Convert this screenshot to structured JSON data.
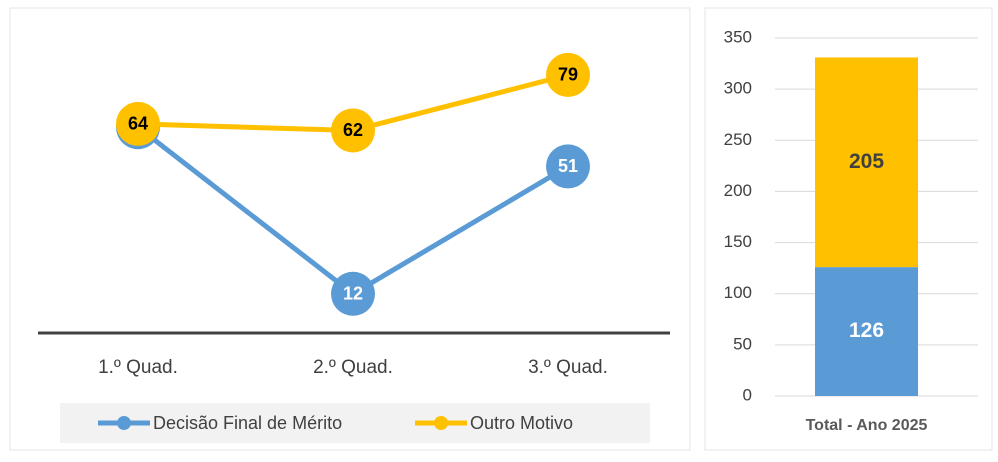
{
  "chart_data": [
    {
      "type": "line",
      "categories": [
        "1.º Quad.",
        "2.º Quad.",
        "3.º Quad."
      ],
      "series": [
        {
          "name": "Decisão Final de Mérito",
          "color": "#5b9bd5",
          "values": [
            63,
            12,
            51
          ]
        },
        {
          "name": "Outro Motivo",
          "color": "#ffc000",
          "values": [
            64,
            62,
            79
          ]
        }
      ],
      "ylim": [
        0,
        90
      ],
      "legend": "bottom"
    },
    {
      "type": "stacked_bar",
      "categories": [
        "Total - Ano 2025"
      ],
      "series": [
        {
          "name": "Decisão Final de Mérito",
          "color": "#5b9bd5",
          "values": [
            126
          ]
        },
        {
          "name": "Outro Motivo",
          "color": "#ffc000",
          "values": [
            205
          ]
        }
      ],
      "ylim": [
        0,
        350
      ],
      "yticks": [
        0,
        50,
        100,
        150,
        200,
        250,
        300,
        350
      ],
      "grid": true
    }
  ]
}
